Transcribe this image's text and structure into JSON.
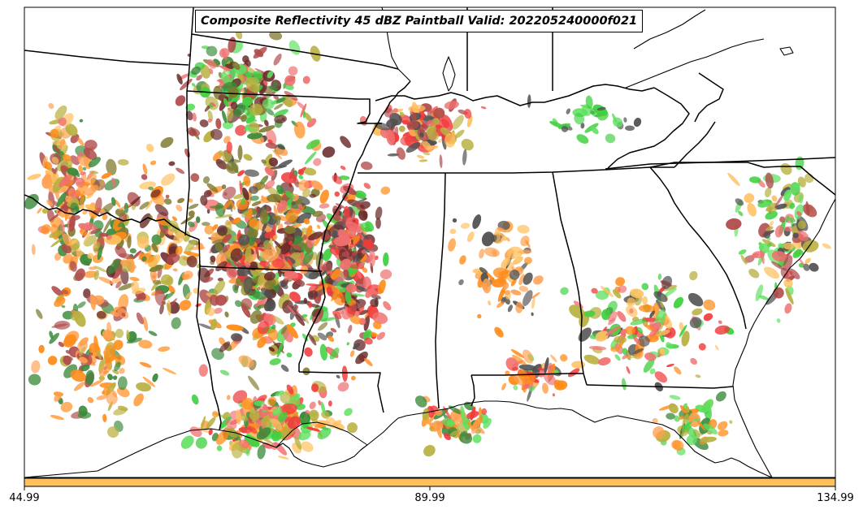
{
  "title": "Composite Reflectivity 45 dBZ Paintball Valid: 202205240000f021",
  "colorbar": {
    "color": "#ffc060",
    "tick_labels": [
      "44.99",
      "89.99",
      "134.99"
    ]
  },
  "colors": {
    "red": "#f03a3a",
    "light_red": "#f07070",
    "brown_red": "#b04a4a",
    "orange": "#ff8c1a",
    "light_orange": "#ffa050",
    "yellow_orange": "#ffc060",
    "olive": "#b8b040",
    "dark_olive": "#807a30",
    "green": "#40d040",
    "light_green": "#60e060",
    "dark_green": "#3a8a3a",
    "dark_gray": "#505050",
    "dark_maroon": "#6a2a2a"
  }
}
